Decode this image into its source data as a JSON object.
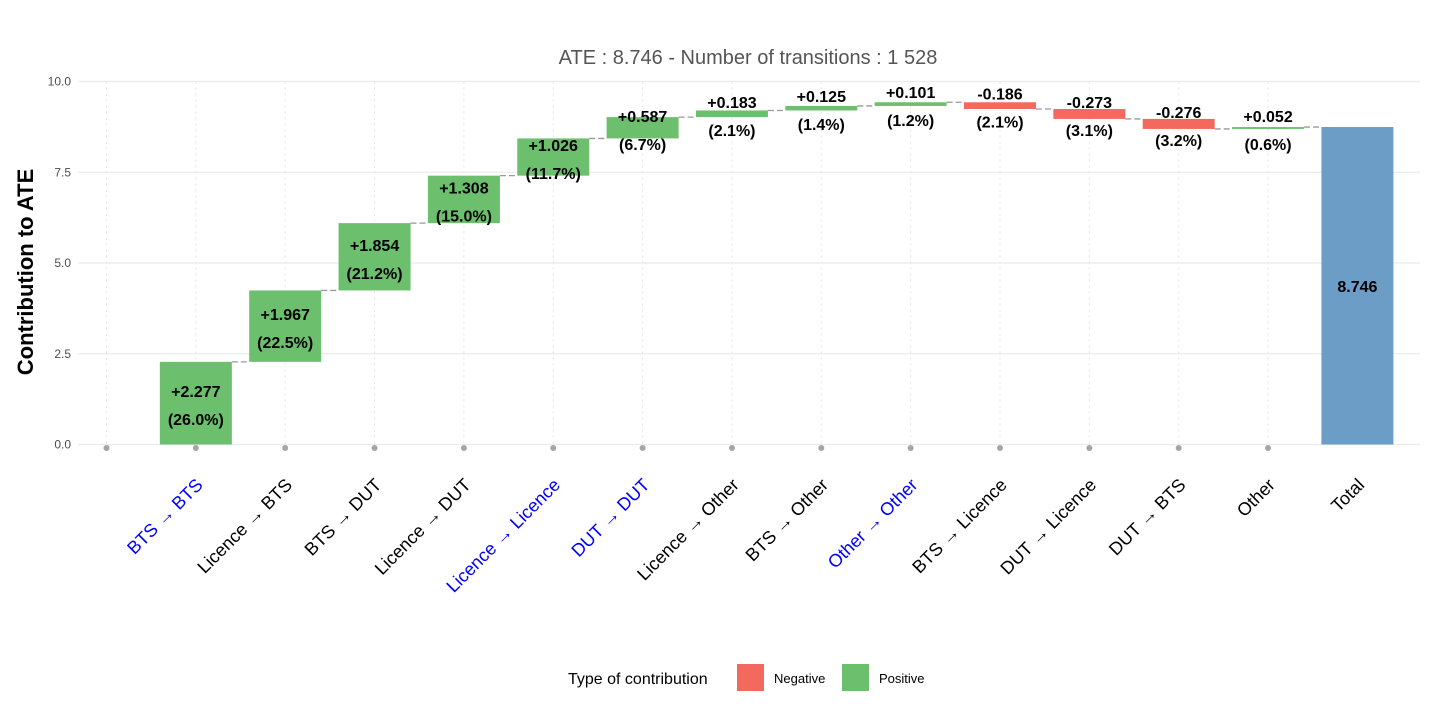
{
  "chart_data": {
    "type": "bar",
    "subtype": "waterfall",
    "title": "ATE : 8.746 - Number of transitions : 1 528",
    "xlabel": "",
    "ylabel": "Contribution to ATE",
    "ylim": [
      0,
      10
    ],
    "yticks": [
      "0.0",
      "2.5",
      "5.0",
      "7.5",
      "10.0"
    ],
    "ytick_values": [
      0,
      2.5,
      5.0,
      7.5,
      10.0
    ],
    "grid": true,
    "total": {
      "category": "Total",
      "value": 8.746,
      "label": "8.746",
      "color": "#6b9dc7"
    },
    "categories": [
      "BTS → BTS",
      "Licence → BTS",
      "BTS → DUT",
      "Licence → DUT",
      "Licence → Licence",
      "DUT → DUT",
      "Licence → Other",
      "BTS → Other",
      "Other → Other",
      "BTS → Licence",
      "DUT → Licence",
      "DUT → BTS",
      "Other"
    ],
    "highlighted": [
      true,
      false,
      false,
      false,
      true,
      true,
      false,
      false,
      true,
      false,
      false,
      false,
      false
    ],
    "values": [
      2.277,
      1.967,
      1.854,
      1.308,
      1.026,
      0.587,
      0.183,
      0.125,
      0.101,
      -0.186,
      -0.273,
      -0.276,
      0.052
    ],
    "value_labels": [
      "+2.277",
      "+1.967",
      "+1.854",
      "+1.308",
      "+1.026",
      "+0.587",
      "+0.183",
      "+0.125",
      "+0.101",
      "-0.186",
      "-0.273",
      "-0.276",
      "+0.052"
    ],
    "pct_labels": [
      "(26.0%)",
      "(22.5%)",
      "(21.2%)",
      "(15.0%)",
      "(11.7%)",
      "(6.7%)",
      "(2.1%)",
      "(1.4%)",
      "(1.2%)",
      "(2.1%)",
      "(3.1%)",
      "(3.2%)",
      "(0.6%)"
    ],
    "legend": {
      "title": "Type of contribution",
      "position": "bottom",
      "items": [
        {
          "label": "Negative",
          "color": "#f4695e"
        },
        {
          "label": "Positive",
          "color": "#6cbf6c"
        }
      ]
    },
    "colors": {
      "positive": "#6cbf6c",
      "negative": "#f4695e",
      "total": "#6b9dc7",
      "highlight_text": "#0000ff",
      "normal_text": "#000000"
    }
  }
}
